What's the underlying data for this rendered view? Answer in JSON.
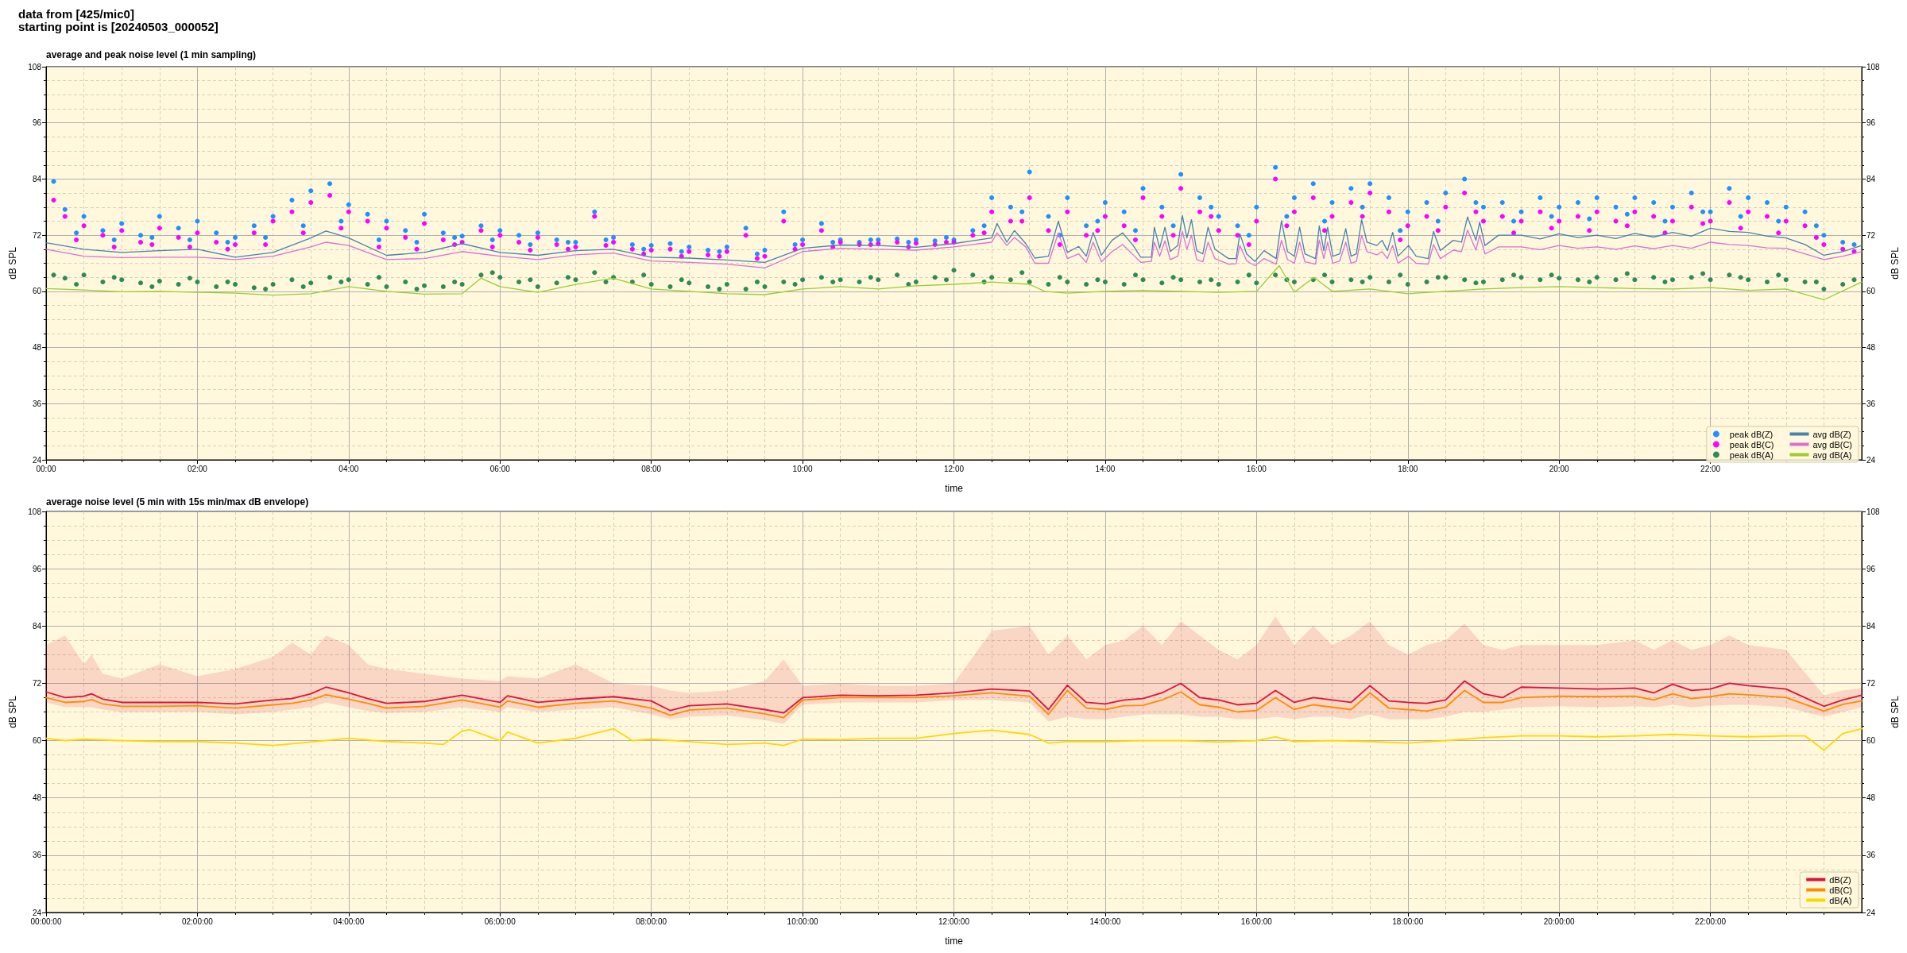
{
  "chart_data": [
    {
      "type": "line",
      "title": "average and peak noise level (1 min sampling)",
      "annotations": [
        "data from [425/mic0]",
        "starting point is [20240503_000052]"
      ],
      "xlabel": "time",
      "ylabel": "dB SPL",
      "y2label": "dB SPL",
      "xlim": [
        0,
        24
      ],
      "xticks": [
        {
          "value": 0,
          "label": "00:00"
        },
        {
          "value": 2,
          "label": "02:00"
        },
        {
          "value": 4,
          "label": "04:00"
        },
        {
          "value": 6,
          "label": "06:00"
        },
        {
          "value": 8,
          "label": "08:00"
        },
        {
          "value": 10,
          "label": "10:00"
        },
        {
          "value": 12,
          "label": "12:00"
        },
        {
          "value": 14,
          "label": "14:00"
        },
        {
          "value": 16,
          "label": "16:00"
        },
        {
          "value": 18,
          "label": "18:00"
        },
        {
          "value": 20,
          "label": "20:00"
        },
        {
          "value": 22,
          "label": "22:00"
        }
      ],
      "ylim": [
        24,
        108
      ],
      "yticks": [
        24,
        36,
        48,
        60,
        72,
        84,
        96,
        108
      ],
      "y2lim": [
        24,
        108
      ],
      "y2ticks": [
        24,
        36,
        48,
        60,
        72,
        84,
        96,
        108
      ],
      "grid": true,
      "legend": "bottom right",
      "marker": "none",
      "line_style": "solid",
      "series": [
        {
          "name": "peak dB(Z)",
          "type": "scatter",
          "marker": "circle",
          "color": "#1e90ff",
          "x": [
            0.1,
            0.25,
            0.5,
            0.75,
            1,
            1.25,
            1.5,
            1.75,
            2,
            2.25,
            2.5,
            2.75,
            3,
            3.25,
            3.5,
            3.75,
            4,
            4.25,
            4.5,
            4.75,
            5,
            5.25,
            5.5,
            5.75,
            6,
            6.25,
            6.5,
            6.75,
            7,
            7.25,
            7.5,
            7.75,
            8,
            8.25,
            8.5,
            8.75,
            9,
            9.25,
            9.5,
            9.75,
            10,
            10.25,
            10.5,
            10.75,
            11,
            11.25,
            11.5,
            11.75,
            12,
            12.25,
            12.5,
            12.75,
            13,
            13.25,
            13.5,
            13.75,
            14,
            14.25,
            14.5,
            14.75,
            15,
            15.25,
            15.5,
            15.75,
            16,
            16.25,
            16.5,
            16.75,
            17,
            17.25,
            17.5,
            17.75,
            18,
            18.25,
            18.5,
            18.75,
            19,
            19.25,
            19.5,
            19.75,
            20,
            20.25,
            20.5,
            20.75,
            21,
            21.25,
            21.5,
            21.75,
            22,
            22.25,
            22.5,
            22.75,
            23,
            23.25,
            23.5,
            23.75,
            0.4,
            0.9,
            1.4,
            1.9,
            2.4,
            2.9,
            3.4,
            3.9,
            4.4,
            4.9,
            5.4,
            5.9,
            6.4,
            6.9,
            7.4,
            7.9,
            8.4,
            8.9,
            9.4,
            9.9,
            10.4,
            10.9,
            11.4,
            11.9,
            12.4,
            12.9,
            13.4,
            13.9,
            14.4,
            14.9,
            15.4,
            15.9,
            16.4,
            16.9,
            17.4,
            17.9,
            18.4,
            18.9,
            19.4,
            19.9,
            20.4,
            20.9,
            21.4,
            21.9,
            22.4,
            22.9,
            23.4,
            23.9
          ],
          "values": [
            83.5,
            77.5,
            76.0,
            73.0,
            74.5,
            72.0,
            76.0,
            73.5,
            75.0,
            72.5,
            71.5,
            74.0,
            76.0,
            79.5,
            81.5,
            83.0,
            78.5,
            76.5,
            75.0,
            73.0,
            76.5,
            72.5,
            71.8,
            74.0,
            73.0,
            72.0,
            72.5,
            71.0,
            70.5,
            77.0,
            71.5,
            70.0,
            69.8,
            70.2,
            69.5,
            68.8,
            69.5,
            73.5,
            68.8,
            77.0,
            71.0,
            74.5,
            71.0,
            70.5,
            71.0,
            71.2,
            71.0,
            70.8,
            71,
            73,
            80,
            78,
            85.5,
            76,
            80,
            74,
            79,
            77,
            82,
            78,
            85,
            80,
            76,
            74,
            78,
            86.5,
            80,
            83,
            79,
            82,
            83,
            80,
            77,
            79,
            81,
            84,
            78,
            79,
            77,
            80,
            78,
            79,
            80,
            78,
            80,
            79,
            78,
            81,
            77,
            82,
            80,
            79,
            78,
            77,
            72,
            70.5,
            72.5,
            71.0,
            71.5,
            71.0,
            70.5,
            71.5,
            74.0,
            75.0,
            71.0,
            70.5,
            71.5,
            71.0,
            70.0,
            70.5,
            71.0,
            69.0,
            68.5,
            68.5,
            68.0,
            70.0,
            70.5,
            71.0,
            70.5,
            71.5,
            74.0,
            77.0,
            72.0,
            75.0,
            73.0,
            74.0,
            78.0,
            72.0,
            76.0,
            75.0,
            78.0,
            73.0,
            75.0,
            79.0,
            75.0,
            76.0,
            75.5,
            76.5,
            75.0,
            77.0,
            76.0,
            75.0,
            74.0,
            70.0
          ]
        },
        {
          "name": "peak dB(C)",
          "type": "scatter",
          "marker": "circle",
          "color": "#ff00ff",
          "x": [
            0.1,
            0.25,
            0.5,
            0.75,
            1,
            1.25,
            1.5,
            1.75,
            2,
            2.25,
            2.5,
            2.75,
            3,
            3.25,
            3.5,
            3.75,
            4,
            4.25,
            4.5,
            4.75,
            5,
            5.25,
            5.5,
            5.75,
            6,
            6.25,
            6.5,
            6.75,
            7,
            7.25,
            7.5,
            7.75,
            8,
            8.25,
            8.5,
            8.75,
            9,
            9.25,
            9.5,
            9.75,
            10,
            10.25,
            10.5,
            10.75,
            11,
            11.25,
            11.5,
            11.75,
            12,
            12.25,
            12.5,
            12.75,
            13,
            13.25,
            13.5,
            13.75,
            14,
            14.25,
            14.5,
            14.75,
            15,
            15.25,
            15.5,
            15.75,
            16,
            16.25,
            16.5,
            16.75,
            17,
            17.25,
            17.5,
            17.75,
            18,
            18.25,
            18.5,
            18.75,
            19,
            19.25,
            19.5,
            19.75,
            20,
            20.25,
            20.5,
            20.75,
            21,
            21.25,
            21.5,
            21.75,
            22,
            22.25,
            22.5,
            22.75,
            23,
            23.25,
            23.5,
            23.75,
            0.4,
            0.9,
            1.4,
            1.9,
            2.4,
            2.9,
            3.4,
            3.9,
            4.4,
            4.9,
            5.4,
            5.9,
            6.4,
            6.9,
            7.4,
            7.9,
            8.4,
            8.9,
            9.4,
            9.9,
            10.4,
            10.9,
            11.4,
            11.9,
            12.4,
            12.9,
            13.4,
            13.9,
            14.4,
            14.9,
            15.4,
            15.9,
            16.4,
            16.9,
            17.4,
            17.9,
            18.4,
            18.9,
            19.4,
            19.9,
            20.4,
            20.9,
            21.4,
            21.9,
            22.4,
            22.9,
            23.4,
            23.9
          ],
          "values": [
            79.5,
            76.0,
            74.0,
            72.0,
            73.0,
            70.5,
            73.5,
            71.5,
            72.5,
            70.5,
            70.0,
            72.5,
            75.0,
            77.0,
            79.0,
            80.5,
            77.0,
            75.0,
            73.5,
            71.5,
            74.5,
            71.0,
            70.5,
            73.0,
            72.0,
            70.5,
            71.5,
            70.0,
            69.5,
            76.0,
            70.5,
            69.0,
            68.8,
            69.0,
            68.5,
            67.8,
            68.5,
            72.0,
            67.5,
            75.0,
            70.0,
            73.0,
            70.5,
            70.0,
            70.2,
            70.5,
            70.3,
            70.0,
            70.5,
            72,
            77,
            75,
            80,
            73,
            77,
            72,
            76,
            74,
            80,
            76,
            82,
            77,
            73,
            72,
            75,
            84,
            77,
            80,
            76,
            79,
            81,
            77,
            74,
            76,
            78,
            81,
            75,
            76,
            75,
            77,
            75,
            76,
            77,
            75,
            77,
            76,
            75,
            78,
            75,
            79,
            77,
            76,
            75,
            74,
            70,
            69,
            71.0,
            69.5,
            70.0,
            69.5,
            69.0,
            70.0,
            72.5,
            73.5,
            69.5,
            69.0,
            70.0,
            69.5,
            68.8,
            69.0,
            69.8,
            68.0,
            67.5,
            67.5,
            67.0,
            69.0,
            69.5,
            70.0,
            69.5,
            70.5,
            72.5,
            75.0,
            70.0,
            73.0,
            71.0,
            72.0,
            76.0,
            70.0,
            74.0,
            73.0,
            76.0,
            71.0,
            73.0,
            77.0,
            72.5,
            73.5,
            73.0,
            74.0,
            72.5,
            74.5,
            73.5,
            72.5,
            71.5,
            68.5
          ]
        },
        {
          "name": "peak dB(A)",
          "type": "scatter",
          "marker": "circle",
          "color": "#2e8b57",
          "x": [
            0.1,
            0.25,
            0.5,
            0.75,
            1,
            1.25,
            1.5,
            1.75,
            2,
            2.25,
            2.5,
            2.75,
            3,
            3.25,
            3.5,
            3.75,
            4,
            4.25,
            4.5,
            4.75,
            5,
            5.25,
            5.5,
            5.75,
            6,
            6.25,
            6.5,
            6.75,
            7,
            7.25,
            7.5,
            7.75,
            8,
            8.25,
            8.5,
            8.75,
            9,
            9.25,
            9.5,
            9.75,
            10,
            10.25,
            10.5,
            10.75,
            11,
            11.25,
            11.5,
            11.75,
            12,
            12.25,
            12.5,
            12.75,
            13,
            13.25,
            13.5,
            13.75,
            14,
            14.25,
            14.5,
            14.75,
            15,
            15.25,
            15.5,
            15.75,
            16,
            16.25,
            16.5,
            16.75,
            17,
            17.25,
            17.5,
            17.75,
            18,
            18.25,
            18.5,
            18.75,
            19,
            19.25,
            19.5,
            19.75,
            20,
            20.25,
            20.5,
            20.75,
            21,
            21.25,
            21.5,
            21.75,
            22,
            22.25,
            22.5,
            22.75,
            23,
            23.25,
            23.5,
            23.75,
            0.4,
            0.9,
            1.4,
            1.9,
            2.4,
            2.9,
            3.4,
            3.9,
            4.4,
            4.9,
            5.4,
            5.9,
            6.4,
            6.9,
            7.4,
            7.9,
            8.4,
            8.9,
            9.4,
            9.9,
            10.4,
            10.9,
            11.4,
            11.9,
            12.4,
            12.9,
            13.4,
            13.9,
            14.4,
            14.9,
            15.4,
            15.9,
            16.4,
            16.9,
            17.4,
            17.9,
            18.4,
            18.9,
            19.4,
            19.9,
            20.4,
            20.9,
            21.4,
            21.9,
            22.4,
            22.9,
            23.4,
            23.9
          ],
          "values": [
            63.5,
            62.8,
            63.5,
            62.0,
            62.5,
            61.8,
            62.2,
            61.5,
            62.0,
            61.0,
            61.5,
            60.8,
            61.5,
            62.5,
            61.8,
            63.0,
            62.5,
            61.5,
            61.0,
            62.0,
            61.2,
            61.0,
            61.5,
            63.5,
            63.0,
            62.0,
            61.0,
            61.8,
            62.5,
            64.0,
            63.0,
            62.0,
            61.5,
            61.0,
            61.8,
            61.0,
            61.5,
            60.5,
            61.0,
            62.0,
            62.5,
            63.0,
            62.5,
            62.0,
            62.5,
            63.5,
            62.0,
            63.0,
            64.5,
            63.5,
            63.0,
            62.5,
            62.0,
            61.5,
            62.0,
            61.5,
            62.0,
            61.5,
            62.5,
            61.8,
            62.5,
            62.0,
            61.5,
            62.0,
            61.8,
            63.5,
            62.0,
            62.5,
            62.0,
            62.5,
            63.0,
            62.0,
            61.5,
            62.0,
            63.0,
            62.5,
            62.0,
            62.5,
            63.0,
            62.5,
            62.8,
            62.5,
            63.0,
            62.5,
            62.5,
            63.0,
            62.5,
            63.0,
            62.5,
            63.5,
            62.5,
            62.0,
            62.5,
            62.0,
            60.5,
            61.5,
            61.5,
            63.0,
            61.0,
            62.8,
            62.0,
            60.5,
            61.0,
            62.0,
            63.0,
            60.5,
            62.0,
            64.0,
            62.5,
            63.0,
            62.0,
            63.5,
            62.5,
            60.5,
            62.0,
            61.5,
            62.0,
            63.0,
            61.5,
            62.5,
            62.0,
            64.0,
            63.0,
            62.5,
            63.5,
            63.0,
            62.5,
            63.5,
            62.5,
            63.5,
            62.0,
            63.5,
            63.0,
            61.8,
            63.5,
            63.5,
            62.0,
            63.8,
            62.0,
            63.8,
            63.0,
            63.5,
            62.0,
            62.5
          ]
        },
        {
          "name": "avg dB(Z)",
          "color": "#4682b4",
          "x": [
            0,
            0.5,
            1,
            1.5,
            2,
            2.5,
            3,
            3.5,
            3.7,
            4,
            4.5,
            5,
            5.5,
            6,
            6.5,
            7,
            7.5,
            8,
            8.5,
            9,
            9.5,
            10,
            10.5,
            11,
            11.5,
            12,
            12.25,
            12.5,
            12.57,
            12.7,
            12.8,
            12.95,
            13.07,
            13.25,
            13.38,
            13.5,
            13.65,
            13.75,
            13.84,
            13.95,
            14.09,
            14.23,
            14.37,
            14.47,
            14.61,
            14.65,
            14.72,
            14.79,
            14.86,
            14.96,
            15.02,
            15.08,
            15.14,
            15.21,
            15.29,
            15.36,
            15.45,
            15.63,
            15.73,
            15.78,
            15.87,
            15.98,
            16.1,
            16.26,
            16.33,
            16.41,
            16.5,
            16.57,
            16.64,
            16.78,
            16.83,
            16.89,
            16.94,
            17.01,
            17.1,
            17.18,
            17.25,
            17.32,
            17.39,
            17.46,
            17.59,
            17.66,
            17.73,
            17.8,
            17.87,
            18.01,
            18.11,
            18.27,
            18.34,
            18.43,
            18.6,
            18.71,
            18.79,
            18.9,
            18.95,
            19.02,
            19.2,
            19.5,
            19.75,
            20,
            20.25,
            20.5,
            20.75,
            21,
            21.25,
            21.5,
            21.75,
            22,
            22.25,
            22.5,
            22.75,
            23,
            23.25,
            23.5,
            23.75,
            24
          ],
          "values": [
            70.4,
            69.0,
            68.3,
            68.7,
            69.0,
            67.3,
            68.3,
            71.4,
            72.9,
            71.4,
            67.7,
            68.3,
            70.2,
            68.3,
            67.7,
            68.7,
            69.0,
            67.3,
            67.1,
            66.7,
            66.2,
            69.2,
            69.9,
            69.8,
            69.4,
            70.2,
            70.8,
            71.4,
            74.5,
            70.5,
            73.0,
            70.2,
            67.1,
            67.5,
            75.0,
            68.3,
            69.6,
            67.5,
            72.6,
            67.7,
            70.9,
            72.5,
            69.8,
            67.3,
            67.3,
            73.7,
            69.2,
            73.7,
            68.5,
            69.8,
            76.2,
            71.4,
            75.3,
            68.7,
            68.0,
            73.7,
            69.0,
            67.0,
            67.0,
            72.3,
            68.0,
            66.4,
            68.7,
            67.0,
            75.1,
            68.5,
            67.5,
            73.7,
            68.0,
            67.0,
            74.0,
            68.7,
            73.7,
            67.5,
            68.0,
            73.4,
            67.5,
            68.0,
            75.3,
            70.5,
            69.8,
            70.9,
            68.7,
            72.6,
            67.5,
            69.8,
            67.5,
            67.0,
            72.8,
            68.7,
            70.9,
            70.5,
            75.9,
            70.9,
            74.8,
            69.8,
            72.0,
            72.0,
            71.2,
            72.3,
            71.5,
            72.0,
            71.3,
            72.4,
            71.6,
            72.6,
            71.8,
            73.5,
            72.8,
            72.6,
            71.8,
            71.4,
            70.0,
            67.7,
            68.5,
            69.8
          ]
        },
        {
          "name": "avg dB(C)",
          "color": "#da70d6",
          "x": [
            0,
            0.5,
            1,
            1.5,
            2,
            2.5,
            3,
            3.5,
            3.7,
            4,
            4.5,
            5,
            5.5,
            6,
            6.5,
            7,
            7.5,
            8,
            8.5,
            9,
            9.5,
            10,
            10.5,
            11,
            11.5,
            12,
            12.25,
            12.5,
            12.57,
            12.7,
            12.8,
            12.95,
            13.07,
            13.25,
            13.38,
            13.5,
            13.65,
            13.75,
            13.84,
            13.95,
            14.09,
            14.23,
            14.37,
            14.47,
            14.61,
            14.65,
            14.72,
            14.79,
            14.86,
            14.96,
            15.02,
            15.08,
            15.14,
            15.21,
            15.29,
            15.36,
            15.45,
            15.63,
            15.73,
            15.78,
            15.87,
            15.98,
            16.1,
            16.26,
            16.33,
            16.41,
            16.5,
            16.57,
            16.64,
            16.78,
            16.83,
            16.89,
            16.94,
            17.01,
            17.1,
            17.18,
            17.25,
            17.32,
            17.39,
            17.46,
            17.59,
            17.66,
            17.73,
            17.8,
            17.87,
            18.01,
            18.11,
            18.27,
            18.34,
            18.43,
            18.6,
            18.71,
            18.79,
            18.9,
            18.95,
            19.02,
            19.2,
            19.5,
            19.75,
            20,
            20.25,
            20.5,
            20.75,
            21,
            21.25,
            21.5,
            21.75,
            22,
            22.25,
            22.5,
            22.75,
            23,
            23.25,
            23.5,
            23.75,
            24
          ],
          "values": [
            69.0,
            67.5,
            67.2,
            67.3,
            67.3,
            66.8,
            67.5,
            69.5,
            70.5,
            69.8,
            66.8,
            67.0,
            68.5,
            67.5,
            66.8,
            67.8,
            68.2,
            66.5,
            66.2,
            65.8,
            65.0,
            68.5,
            69.2,
            69.0,
            68.8,
            69.5,
            70.0,
            70.5,
            72.5,
            69.8,
            71.5,
            69.5,
            66.0,
            66.0,
            72.5,
            67.0,
            68.0,
            66.2,
            70.5,
            66.3,
            68.5,
            70.0,
            67.8,
            66.2,
            66.4,
            70.5,
            67.5,
            70.8,
            66.8,
            67.5,
            72.8,
            69.0,
            72.0,
            66.8,
            66.3,
            70.5,
            67.0,
            65.8,
            65.9,
            69.8,
            66.5,
            65.5,
            67.0,
            65.8,
            70.9,
            66.8,
            66.0,
            70.5,
            66.3,
            65.8,
            71.0,
            67.0,
            70.5,
            66.0,
            66.5,
            70.5,
            66.0,
            66.4,
            72.0,
            68.5,
            67.8,
            68.5,
            67.0,
            69.8,
            66.0,
            67.5,
            66.0,
            65.8,
            70.0,
            67.0,
            68.8,
            68.5,
            73.1,
            68.8,
            72.0,
            68.0,
            69.5,
            69.5,
            68.9,
            69.8,
            69.2,
            69.5,
            69.0,
            69.7,
            69.1,
            69.8,
            69.2,
            70.5,
            70.0,
            69.8,
            69.3,
            69.2,
            68.0,
            66.8,
            67.5,
            68.5
          ]
        },
        {
          "name": "avg dB(A)",
          "color": "#9acd32",
          "x": [
            0,
            0.5,
            1,
            1.5,
            2,
            2.5,
            3,
            3.5,
            4,
            4.5,
            5,
            5.5,
            5.75,
            6,
            6.5,
            7,
            7.5,
            8,
            8.5,
            9,
            9.5,
            10,
            10.5,
            11,
            11.5,
            12,
            12.5,
            13,
            13.2,
            13.5,
            14,
            14.5,
            15,
            15.5,
            16,
            16.3,
            16.5,
            16.76,
            17,
            17.5,
            18,
            18.5,
            19,
            19.5,
            20,
            20.5,
            21,
            21.5,
            22,
            22.5,
            23,
            23.5,
            24
          ],
          "values": [
            60.6,
            60.3,
            59.9,
            60.0,
            59.8,
            59.6,
            59.2,
            59.5,
            61.0,
            60.0,
            59.4,
            59.5,
            62.8,
            61.0,
            59.8,
            61.5,
            62.8,
            60.5,
            60.0,
            59.5,
            59.3,
            60.5,
            61.0,
            60.5,
            61.2,
            61.5,
            62.0,
            61.5,
            60.0,
            59.6,
            60.0,
            60.2,
            60.0,
            59.8,
            60.0,
            65.5,
            59.8,
            63.0,
            60.0,
            60.5,
            59.5,
            60.0,
            60.5,
            60.8,
            61.0,
            60.8,
            60.6,
            60.5,
            60.8,
            60.2,
            60.5,
            58.2,
            62.0
          ]
        }
      ]
    },
    {
      "type": "line",
      "title": "average noise level (5 min with 15s min/max dB envelope)",
      "xlabel": "time",
      "ylabel": "dB SPL",
      "y2label": "dB SPL",
      "xlim": [
        0,
        24
      ],
      "xticks": [
        {
          "value": 0,
          "label": "00:00:00"
        },
        {
          "value": 2,
          "label": "02:00:00"
        },
        {
          "value": 4,
          "label": "04:00:00"
        },
        {
          "value": 6,
          "label": "06:00:00"
        },
        {
          "value": 8,
          "label": "08:00:00"
        },
        {
          "value": 10,
          "label": "10:00:00"
        },
        {
          "value": 12,
          "label": "12:00:00"
        },
        {
          "value": 14,
          "label": "14:00:00"
        },
        {
          "value": 16,
          "label": "16:00:00"
        },
        {
          "value": 18,
          "label": "18:00:00"
        },
        {
          "value": 20,
          "label": "20:00:00"
        },
        {
          "value": 22,
          "label": "22:00:00"
        }
      ],
      "ylim": [
        24,
        108
      ],
      "yticks": [
        24,
        36,
        48,
        60,
        72,
        84,
        96,
        108
      ],
      "y2lim": [
        24,
        108
      ],
      "y2ticks": [
        24,
        36,
        48,
        60,
        72,
        84,
        96,
        108
      ],
      "grid": true,
      "legend": "bottom right",
      "marker": "none",
      "line_style": "solid",
      "x": [
        0,
        0.25,
        0.5,
        0.6,
        0.75,
        1,
        1.5,
        2,
        2.5,
        3,
        3.25,
        3.5,
        3.7,
        4,
        4.25,
        4.5,
        5,
        5.5,
        6,
        6.1,
        6.5,
        7,
        7.5,
        8,
        8.25,
        8.5,
        9,
        9.5,
        9.75,
        10,
        10.5,
        11,
        11.5,
        12,
        12.5,
        13,
        13.25,
        13.5,
        13.75,
        14,
        14.25,
        14.5,
        14.75,
        15,
        15.25,
        15.5,
        15.75,
        16,
        16.25,
        16.5,
        16.75,
        17,
        17.25,
        17.5,
        17.75,
        18,
        18.25,
        18.5,
        18.75,
        19,
        19.25,
        19.5,
        20,
        20.5,
        21,
        21.25,
        21.5,
        21.75,
        22,
        22.25,
        22.5,
        23,
        23.5,
        23.75,
        24
      ],
      "series": [
        {
          "name": "dB(Z)",
          "color": "#dc143c",
          "values": [
            70.2,
            69.0,
            69.3,
            69.8,
            68.7,
            68.0,
            68.0,
            68.0,
            67.7,
            68.5,
            68.8,
            69.8,
            71.2,
            70.0,
            68.8,
            67.8,
            68.2,
            69.5,
            68.0,
            69.4,
            68.0,
            68.7,
            69.2,
            68.3,
            66.3,
            67.3,
            67.7,
            66.5,
            65.8,
            69.0,
            69.5,
            69.4,
            69.5,
            70.0,
            70.8,
            70.4,
            66.5,
            71.6,
            68.0,
            67.7,
            68.5,
            68.8,
            70.0,
            72.0,
            69.0,
            68.5,
            67.5,
            67.8,
            70.5,
            68.0,
            69.0,
            68.5,
            68.0,
            71.5,
            68.3,
            68.0,
            67.8,
            68.5,
            72.5,
            69.8,
            69.0,
            71.2,
            71.0,
            70.8,
            71.0,
            70.0,
            71.8,
            70.5,
            70.8,
            72.0,
            71.5,
            70.8,
            67.2,
            68.5,
            69.5
          ],
          "lower": [
            68,
            67,
            67,
            67,
            66.5,
            66,
            66,
            66,
            65.5,
            66,
            66.5,
            67,
            68,
            67,
            66.2,
            65.8,
            66,
            67,
            66,
            67,
            66,
            66.5,
            67,
            65.5,
            64.5,
            65,
            65.3,
            64.3,
            63.5,
            67.5,
            68,
            68,
            68,
            68.5,
            68.5,
            68,
            64,
            65,
            64.5,
            64.5,
            65,
            65.5,
            65.5,
            65.5,
            65,
            65,
            64.5,
            64.5,
            65,
            64.5,
            65,
            65,
            64.5,
            65.5,
            64.5,
            64.5,
            64.5,
            65,
            66,
            66,
            66.5,
            67,
            67.2,
            67,
            67.2,
            67,
            67.5,
            67,
            67.3,
            67.5,
            67.5,
            67,
            65,
            66,
            67
          ],
          "upper": [
            80,
            82,
            76,
            78,
            74,
            73,
            76,
            73.5,
            75,
            77.5,
            80.5,
            78,
            82,
            80,
            76,
            75,
            74,
            73,
            72.5,
            73.5,
            73,
            76,
            72,
            71.5,
            70.5,
            70,
            70.5,
            72.5,
            77,
            71.5,
            72,
            71.5,
            71.5,
            72,
            83,
            84,
            78,
            82,
            77,
            80,
            81,
            84,
            80,
            85,
            82,
            79,
            77,
            80,
            86,
            80,
            84,
            80,
            82,
            85,
            80,
            78,
            80,
            81,
            84.5,
            80,
            79,
            80,
            80,
            80,
            81,
            79,
            81,
            79,
            80,
            82,
            80,
            79,
            69.5,
            70.5,
            71
          ]
        },
        {
          "name": "dB(C)",
          "color": "#ff8c00",
          "values": [
            69.0,
            68.0,
            68.2,
            68.6,
            67.7,
            67.2,
            67.2,
            67.3,
            66.8,
            67.5,
            67.8,
            68.5,
            69.6,
            68.7,
            67.8,
            66.8,
            67.2,
            68.5,
            67.0,
            68.3,
            67.0,
            67.8,
            68.3,
            66.8,
            65.3,
            66.4,
            66.8,
            65.6,
            64.8,
            68.5,
            69.0,
            69.0,
            69.0,
            69.4,
            70.0,
            69.3,
            65.5,
            70.5,
            66.8,
            66.5,
            67.3,
            67.4,
            68.5,
            70.2,
            67.5,
            67.0,
            66.0,
            66.3,
            69.0,
            66.5,
            67.5,
            67.0,
            66.5,
            70.0,
            66.8,
            66.5,
            66.2,
            67.0,
            70.5,
            68.0,
            68.0,
            69.0,
            69.3,
            69.2,
            69.3,
            68.5,
            69.8,
            68.8,
            69.2,
            69.8,
            69.6,
            69.0,
            66.2,
            67.6,
            68.3
          ]
        },
        {
          "name": "dB(A)",
          "color": "#ffd700",
          "x": [
            0,
            0.25,
            0.5,
            1,
            1.5,
            2,
            2.5,
            3,
            3.5,
            4,
            4.5,
            5,
            5.25,
            5.5,
            5.6,
            6,
            6.1,
            6.5,
            7,
            7.5,
            7.75,
            8,
            8.5,
            9,
            9.5,
            9.75,
            10,
            10.5,
            11,
            11.5,
            12,
            12.5,
            13,
            13.25,
            13.5,
            14,
            14.5,
            15,
            15.5,
            16,
            16.25,
            16.5,
            17,
            17.5,
            18,
            18.5,
            19,
            19.5,
            20,
            20.5,
            21,
            21.5,
            22,
            22.5,
            23,
            23.25,
            23.5,
            23.75,
            24
          ],
          "values": [
            60.5,
            60.0,
            60.3,
            60.0,
            59.8,
            59.8,
            59.5,
            59.0,
            59.7,
            60.5,
            59.8,
            59.5,
            59.2,
            62.0,
            62.3,
            60.0,
            61.8,
            59.5,
            60.5,
            62.5,
            60.0,
            60.3,
            59.8,
            59.2,
            59.5,
            59.0,
            60.3,
            60.2,
            60.5,
            60.5,
            61.5,
            62.2,
            61.3,
            59.5,
            59.8,
            59.8,
            60.0,
            60.0,
            59.7,
            60.0,
            60.8,
            59.8,
            60.0,
            59.8,
            59.5,
            60.0,
            60.6,
            61.0,
            61.0,
            60.8,
            61.0,
            61.3,
            61.0,
            60.8,
            61.0,
            61.0,
            58.0,
            61.5,
            62.5
          ]
        }
      ]
    }
  ]
}
